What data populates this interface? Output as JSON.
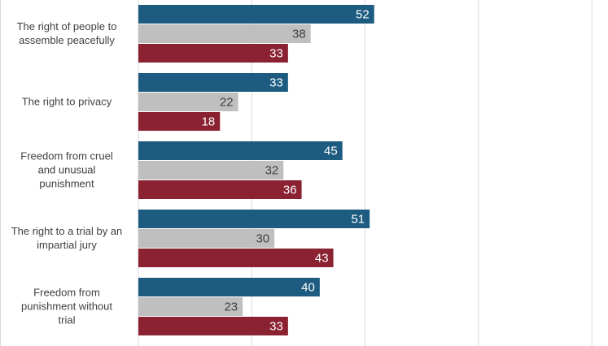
{
  "chart_data": {
    "type": "bar",
    "orientation": "horizontal",
    "categories": [
      [
        "The right of people to",
        "assemble peacefully"
      ],
      [
        "The right to privacy"
      ],
      [
        "Freedom from cruel",
        "and unusual",
        "punishment"
      ],
      [
        "The right to a trial by an",
        "impartial jury"
      ],
      [
        "Freedom from",
        "punishment without",
        "trial"
      ]
    ],
    "series": [
      {
        "values": [
          52,
          33,
          45,
          51,
          40
        ],
        "color": "#1d5c80",
        "label_color": "light"
      },
      {
        "values": [
          38,
          22,
          32,
          30,
          23
        ],
        "color": "#bfbfbf",
        "label_color": "dark"
      },
      {
        "values": [
          33,
          18,
          36,
          43,
          33
        ],
        "color": "#8b2232",
        "label_color": "light"
      }
    ],
    "xlim": [
      0,
      105
    ],
    "grid": true,
    "gridline_color": "#d9d9d9"
  }
}
